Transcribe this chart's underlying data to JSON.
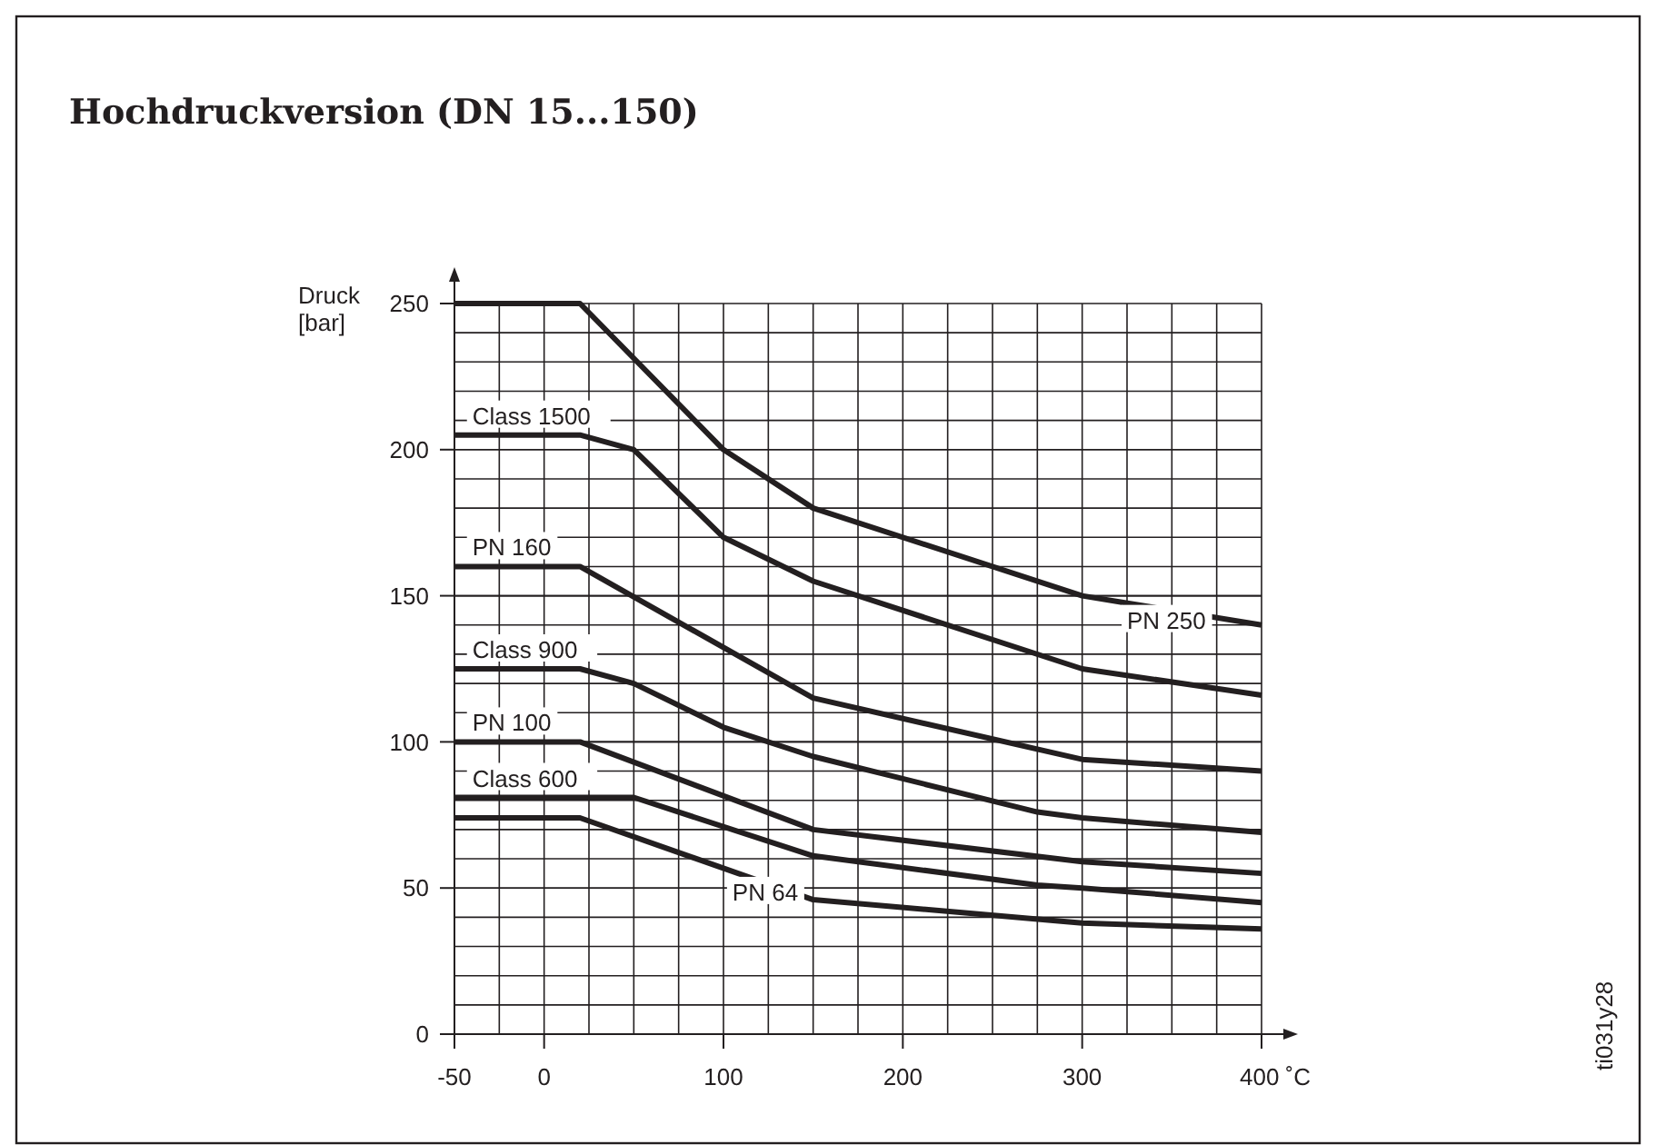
{
  "chart_data": {
    "type": "line",
    "title": "Hochdruckversion (DN 15...150)",
    "ylabel": "Druck\n[bar]",
    "xlim": [
      -50,
      400
    ],
    "xticks": [
      -50,
      0,
      100,
      200,
      300,
      {
        "value": 400,
        "label": "400 ˚C"
      }
    ],
    "ylim": [
      0,
      250
    ],
    "yticks": [
      0,
      50,
      100,
      150,
      200,
      250
    ],
    "grid": true,
    "legend": false,
    "marker": "none",
    "line_style": "solid",
    "annotations": [
      "ti031y28"
    ],
    "series": [
      {
        "name": "PN 250",
        "color": "#231f20",
        "x": [
          -50,
          20,
          100,
          150,
          300,
          400
        ],
        "values": [
          250,
          250,
          200,
          180,
          150,
          140
        ]
      },
      {
        "name": "Class 1500",
        "color": "#231f20",
        "x": [
          -50,
          20,
          50,
          100,
          150,
          300,
          400
        ],
        "values": [
          205,
          205,
          200,
          170,
          155,
          125,
          116
        ]
      },
      {
        "name": "PN 160",
        "color": "#231f20",
        "x": [
          -50,
          20,
          150,
          300,
          400
        ],
        "values": [
          160,
          160,
          115,
          94,
          90
        ]
      },
      {
        "name": "Class 900",
        "color": "#231f20",
        "x": [
          -50,
          20,
          50,
          100,
          150,
          275,
          300,
          400
        ],
        "values": [
          125,
          125,
          120,
          105,
          95,
          76,
          74,
          69
        ]
      },
      {
        "name": "PN 100",
        "color": "#231f20",
        "x": [
          -50,
          20,
          150,
          300,
          400
        ],
        "values": [
          100,
          100,
          70,
          59,
          55
        ]
      },
      {
        "name": "Class 600",
        "color": "#231f20",
        "x": [
          -50,
          50,
          150,
          275,
          300,
          400
        ],
        "values": [
          81,
          81,
          61,
          51,
          50,
          45
        ]
      },
      {
        "name": "PN 64",
        "color": "#231f20",
        "x": [
          -50,
          20,
          150,
          300,
          400
        ],
        "values": [
          74,
          74,
          46,
          38,
          36
        ]
      }
    ]
  }
}
